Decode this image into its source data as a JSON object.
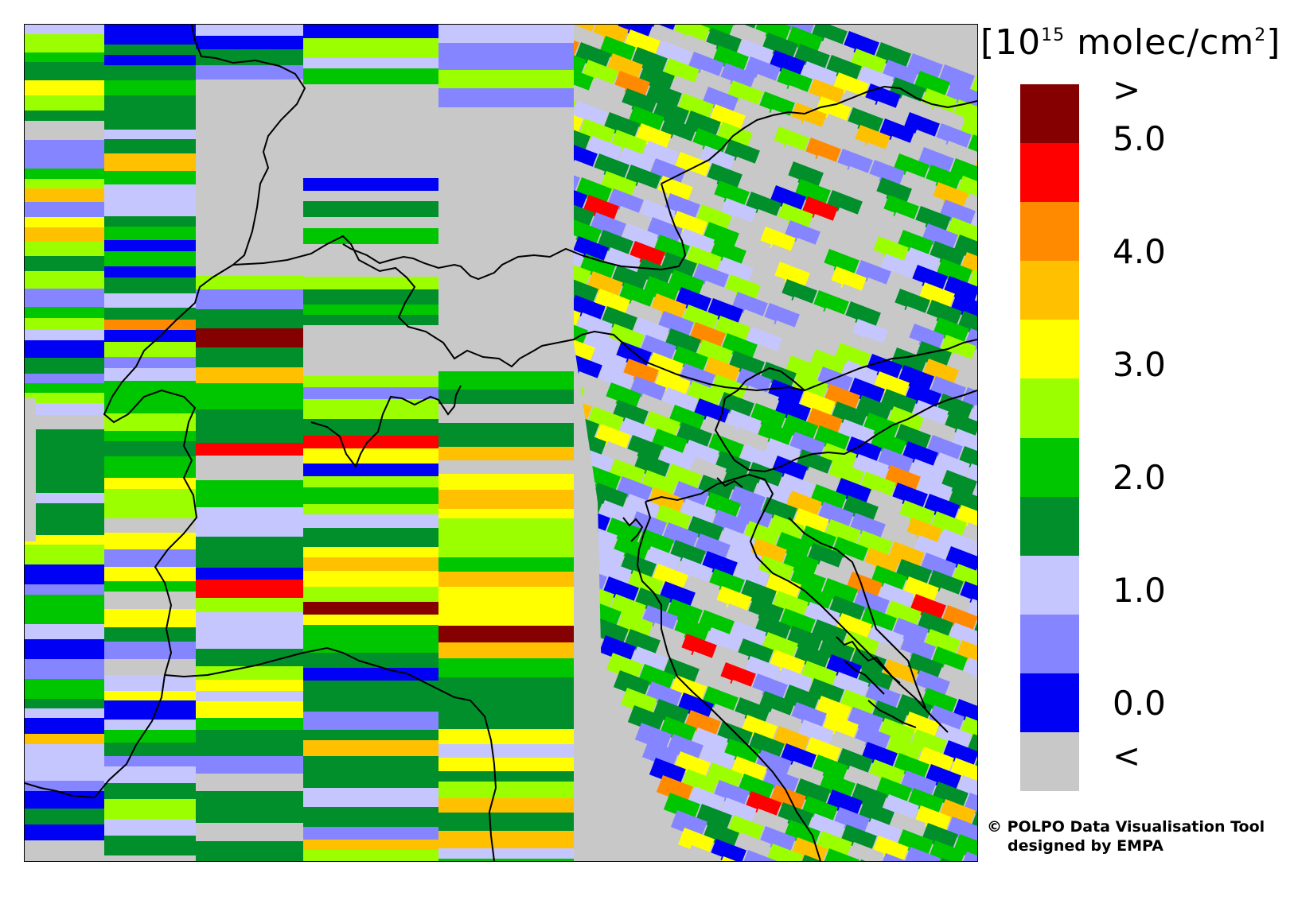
{
  "map": {
    "palette": {
      "below": "#c8c8c8",
      "c0": "#0000f5",
      "c1": "#8585ff",
      "c2": "#c6c6ff",
      "c3": "#008f2a",
      "c4": "#00c600",
      "c5": "#9bff00",
      "c6": "#ffff00",
      "c7": "#ffc000",
      "c8": "#ff8a00",
      "c9": "#ff0000",
      "above": "#850000"
    },
    "country_border_color": "#000000",
    "swath_seed": 17
  },
  "legend": {
    "unit_prefix": "[10",
    "unit_exp": "15",
    "unit_mid": " molec/cm",
    "unit_sq": "2",
    "unit_suffix": "]",
    "labels": [
      ">",
      "5.0",
      "4.0",
      "3.0",
      "2.0",
      "1.0",
      "0.0",
      "<"
    ],
    "colors": [
      "#850000",
      "#ff0000",
      "#ff8a00",
      "#ffc000",
      "#ffff00",
      "#9bff00",
      "#00c600",
      "#008f2a",
      "#c6c6ff",
      "#8585ff",
      "#0000f5",
      "#c8c8c8"
    ]
  },
  "credits": {
    "line1": "© POLPO Data Visualisation Tool",
    "line2": "designed by EMPA"
  }
}
